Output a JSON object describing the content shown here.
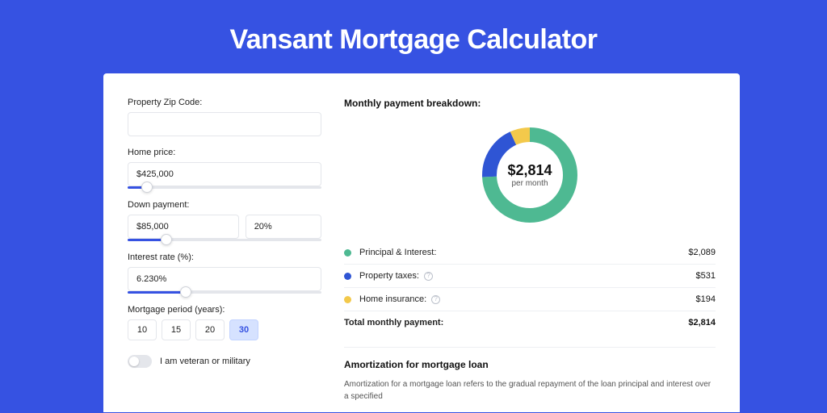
{
  "title": "Vansant Mortgage Calculator",
  "colors": {
    "page_bg": "#3652e2",
    "card_bg": "#ffffff",
    "accent": "#3652e2",
    "border": "#e4e6eb",
    "text": "#222222",
    "muted": "#555555"
  },
  "form": {
    "zip": {
      "label": "Property Zip Code:",
      "value": ""
    },
    "home_price": {
      "label": "Home price:",
      "value": "$425,000",
      "slider_pct": 10
    },
    "down_payment": {
      "label": "Down payment:",
      "amount": "$85,000",
      "pct": "20%",
      "slider_pct": 20
    },
    "interest_rate": {
      "label": "Interest rate (%):",
      "value": "6.230%",
      "slider_pct": 30
    },
    "period": {
      "label": "Mortgage period (years):",
      "options": [
        "10",
        "15",
        "20",
        "30"
      ],
      "selected": "30"
    },
    "veteran": {
      "label": "I am veteran or military",
      "on": false
    }
  },
  "breakdown": {
    "title": "Monthly payment breakdown:",
    "total_value": "$2,814",
    "total_sub": "per month",
    "donut": {
      "type": "donut",
      "radius": 50,
      "stroke_width": 18,
      "background_color": "#ffffff",
      "slices": [
        {
          "key": "pi",
          "color": "#4eb992",
          "pct": 74.2
        },
        {
          "key": "tax",
          "color": "#2f55d4",
          "pct": 18.9
        },
        {
          "key": "ins",
          "color": "#f3c94b",
          "pct": 6.9
        }
      ]
    },
    "items": [
      {
        "key": "pi",
        "label": "Principal & Interest:",
        "color": "#4eb992",
        "value": "$2,089",
        "info": false
      },
      {
        "key": "tax",
        "label": "Property taxes:",
        "color": "#2f55d4",
        "value": "$531",
        "info": true
      },
      {
        "key": "ins",
        "label": "Home insurance:",
        "color": "#f3c94b",
        "value": "$194",
        "info": true
      }
    ],
    "total_row": {
      "label": "Total monthly payment:",
      "value": "$2,814"
    }
  },
  "amortization": {
    "title": "Amortization for mortgage loan",
    "body": "Amortization for a mortgage loan refers to the gradual repayment of the loan principal and interest over a specified"
  }
}
